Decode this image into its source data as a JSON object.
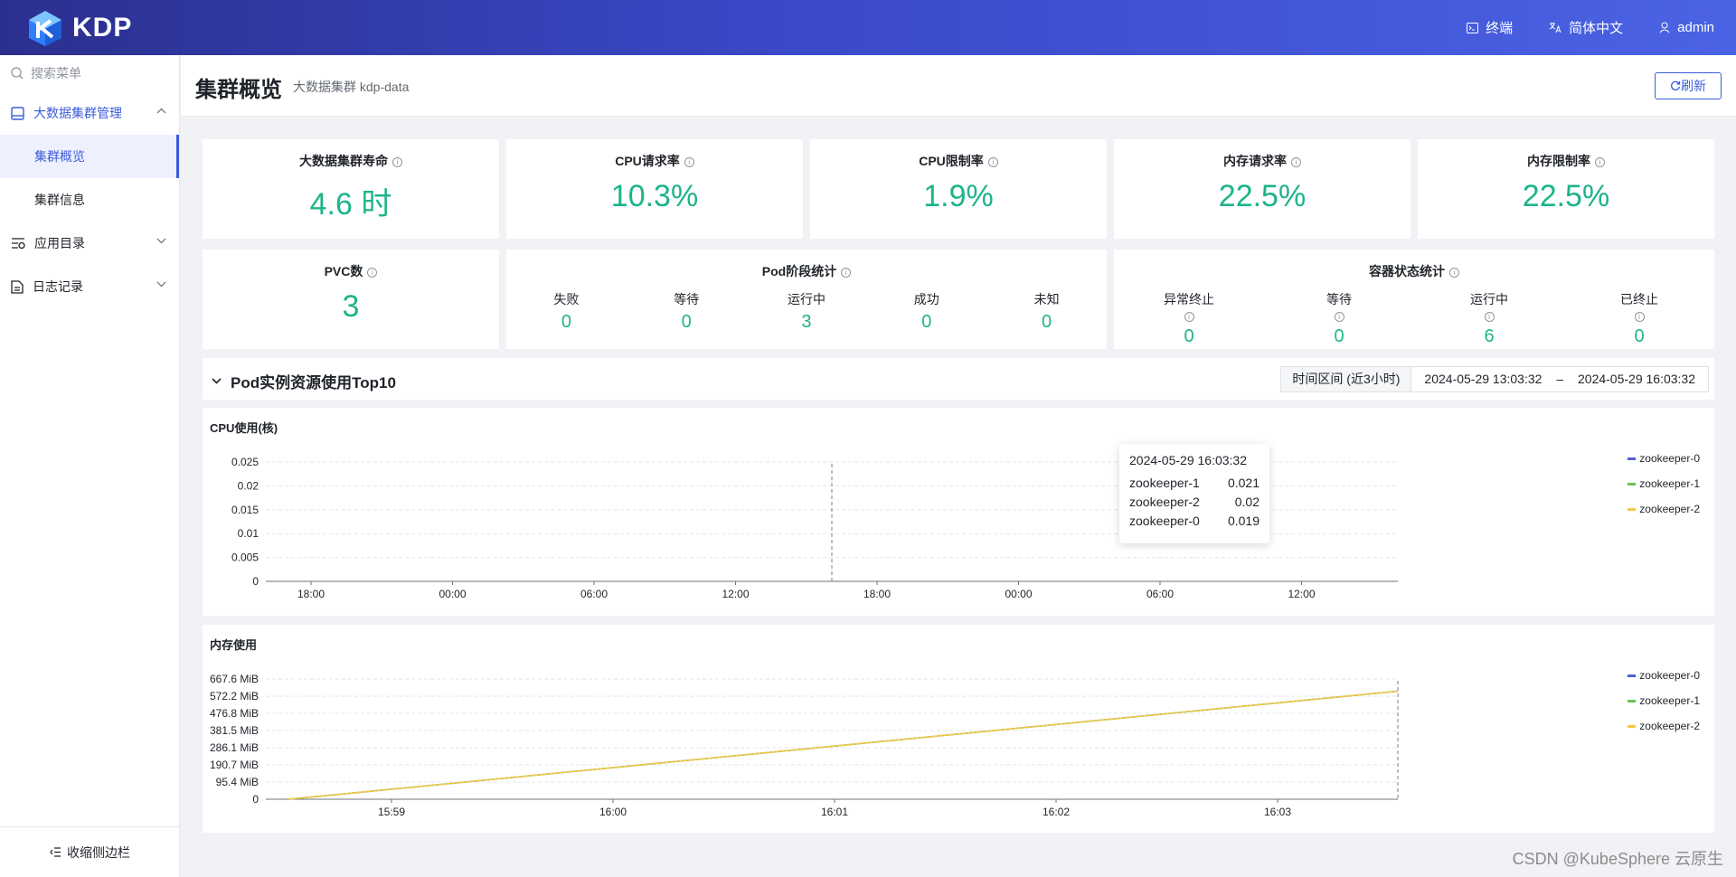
{
  "header": {
    "logo_text": "KDP",
    "actions": [
      {
        "label": "终端",
        "icon": "terminal-icon"
      },
      {
        "label": "简体中文",
        "icon": "translate-icon"
      },
      {
        "label": "admin",
        "icon": "user-icon"
      }
    ]
  },
  "sidebar": {
    "search_placeholder": "搜索菜单",
    "groups": [
      {
        "label": "大数据集群管理",
        "icon": "cluster-icon",
        "expanded": true,
        "children": [
          {
            "label": "集群概览",
            "active": true
          },
          {
            "label": "集群信息",
            "active": false
          }
        ]
      },
      {
        "label": "应用目录",
        "icon": "catalog-icon",
        "expanded": false
      },
      {
        "label": "日志记录",
        "icon": "log-icon",
        "expanded": false
      }
    ],
    "collapse_label": "收缩侧边栏"
  },
  "page": {
    "title": "集群概览",
    "subtitle": "大数据集群 kdp-data",
    "refresh_label": "刷新"
  },
  "metrics": [
    {
      "title": "大数据集群寿命",
      "value": "4.6 时"
    },
    {
      "title": "CPU请求率",
      "value": "10.3%"
    },
    {
      "title": "CPU限制率",
      "value": "1.9%"
    },
    {
      "title": "内存请求率",
      "value": "22.5%"
    },
    {
      "title": "内存限制率",
      "value": "22.5%"
    }
  ],
  "pvc": {
    "title": "PVC数",
    "value": "3"
  },
  "pod_stats": {
    "title": "Pod阶段统计",
    "items": [
      {
        "label": "失败",
        "value": "0"
      },
      {
        "label": "等待",
        "value": "0"
      },
      {
        "label": "运行中",
        "value": "3"
      },
      {
        "label": "成功",
        "value": "0"
      },
      {
        "label": "未知",
        "value": "0"
      }
    ]
  },
  "container_stats": {
    "title": "容器状态统计",
    "items": [
      {
        "label": "异常终止",
        "value": "0"
      },
      {
        "label": "等待",
        "value": "0"
      },
      {
        "label": "运行中",
        "value": "6"
      },
      {
        "label": "已终止",
        "value": "0"
      }
    ]
  },
  "top10": {
    "title": "Pod实例资源使用Top10",
    "time_label": "时间区间 (近3小时)",
    "time_start": "2024-05-29 13:03:32",
    "time_sep": "–",
    "time_end": "2024-05-29 16:03:32"
  },
  "colors": {
    "accent": "#3b5bdb",
    "value_green": "#1db48a",
    "series": [
      "#4e5fcf",
      "#6cc155",
      "#f5c842"
    ]
  },
  "tooltip": {
    "time": "2024-05-29 16:03:32",
    "rows": [
      {
        "name": "zookeeper-1",
        "value": "0.021"
      },
      {
        "name": "zookeeper-2",
        "value": "0.02"
      },
      {
        "name": "zookeeper-0",
        "value": "0.019"
      }
    ]
  },
  "chart_data": [
    {
      "type": "line",
      "title": "CPU使用(核)",
      "xlabel": "",
      "ylabel": "",
      "x_ticks": [
        "18:00",
        "00:00",
        "06:00",
        "12:00",
        "18:00",
        "00:00",
        "06:00",
        "12:00"
      ],
      "y_ticks": [
        "0.025",
        "0.02",
        "0.015",
        "0.01",
        "0.005",
        "0"
      ],
      "ylim": [
        0,
        0.025
      ],
      "series": [
        {
          "name": "zookeeper-0",
          "values": [
            0.019
          ]
        },
        {
          "name": "zookeeper-1",
          "values": [
            0.021
          ]
        },
        {
          "name": "zookeeper-2",
          "values": [
            0.02
          ]
        }
      ],
      "legend": "top-right"
    },
    {
      "type": "line",
      "title": "内存使用",
      "xlabel": "",
      "ylabel": "",
      "x_ticks": [
        "15:59",
        "16:00",
        "16:01",
        "16:02",
        "16:03"
      ],
      "y_ticks": [
        "667.6 MiB",
        "572.2 MiB",
        "476.8 MiB",
        "381.5 MiB",
        "286.1 MiB",
        "190.7 MiB",
        "95.4 MiB",
        "0"
      ],
      "ylim": [
        0,
        667.6
      ],
      "series": [
        {
          "name": "zookeeper-0",
          "values": [
            0,
            600
          ]
        },
        {
          "name": "zookeeper-1",
          "values": [
            0,
            600
          ]
        },
        {
          "name": "zookeeper-2",
          "values": [
            0,
            600
          ]
        }
      ],
      "legend": "top-right"
    }
  ],
  "watermark": "CSDN @KubeSphere 云原生"
}
